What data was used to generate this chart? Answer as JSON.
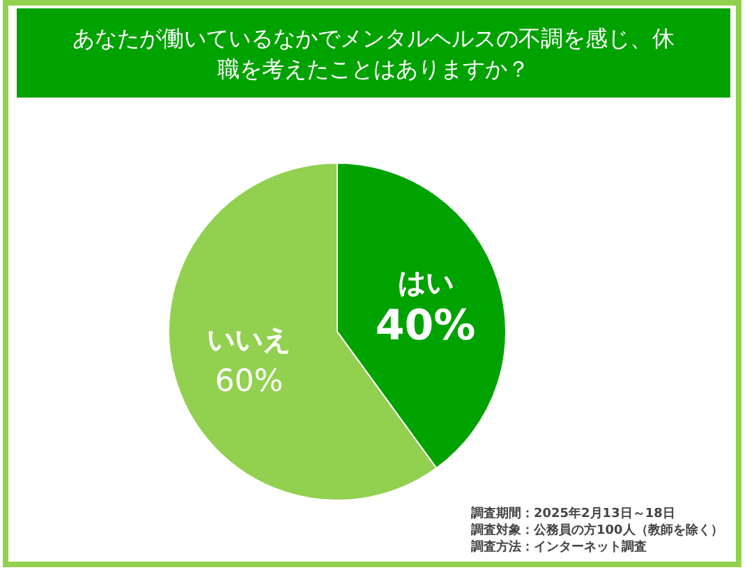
{
  "chart_data": {
    "type": "pie",
    "title": "あなたが働いているなかでメンタルヘルスの不調を感じ、休職を考えたことはありますか？",
    "categories": [
      "はい",
      "いいえ"
    ],
    "values": [
      40,
      60
    ],
    "value_labels": [
      "40%",
      "60%"
    ],
    "colors": [
      "#00a200",
      "#92d050"
    ],
    "legend": false,
    "annotations": [
      "調査期間：2025年2月13日～18日",
      "調査対象：公務員の方100人（教師を除く）",
      "調査方法：インターネット調査"
    ]
  }
}
